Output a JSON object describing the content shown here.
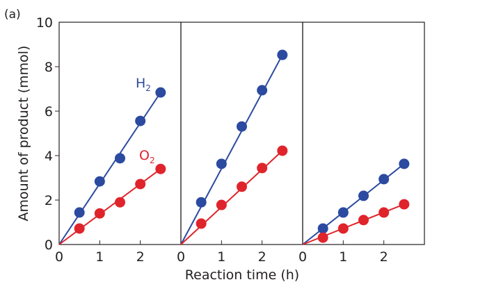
{
  "chart_data": {
    "type": "scatter",
    "panel_label": "(a)",
    "xlabel": "Reaction time (h)",
    "ylabel": "Amount of product (mmol)",
    "xlim": [
      0,
      3
    ],
    "ylim": [
      0,
      10
    ],
    "xticks": [
      "0",
      "1",
      "2"
    ],
    "yticks": [
      "0",
      "2",
      "4",
      "6",
      "8",
      "10"
    ],
    "colors": {
      "H2": "#2b4aa0",
      "O2": "#e0242b",
      "axis": "#231f20"
    },
    "series_labels": {
      "H2": "H",
      "H2_sub": "2",
      "O2": "O",
      "O2_sub": "2"
    },
    "panels": [
      {
        "x": [
          0.5,
          1,
          1.5,
          2,
          2.5
        ],
        "series": [
          {
            "name": "H2",
            "values": [
              1.44,
              2.84,
              3.88,
              5.56,
              6.84
            ]
          },
          {
            "name": "O2",
            "values": [
              0.72,
              1.4,
              1.9,
              2.72,
              3.4
            ]
          }
        ]
      },
      {
        "x": [
          0.5,
          1,
          1.5,
          2,
          2.5
        ],
        "series": [
          {
            "name": "H2",
            "values": [
              1.9,
              3.63,
              5.31,
              6.94,
              8.53
            ]
          },
          {
            "name": "O2",
            "values": [
              0.94,
              1.78,
              2.6,
              3.44,
              4.22
            ]
          }
        ]
      },
      {
        "x": [
          0.5,
          1,
          1.5,
          2,
          2.5
        ],
        "series": [
          {
            "name": "H2",
            "values": [
              0.72,
              1.44,
              2.19,
              2.94,
              3.63
            ]
          },
          {
            "name": "O2",
            "values": [
              0.31,
              0.72,
              1.1,
              1.44,
              1.81
            ]
          }
        ]
      }
    ]
  }
}
